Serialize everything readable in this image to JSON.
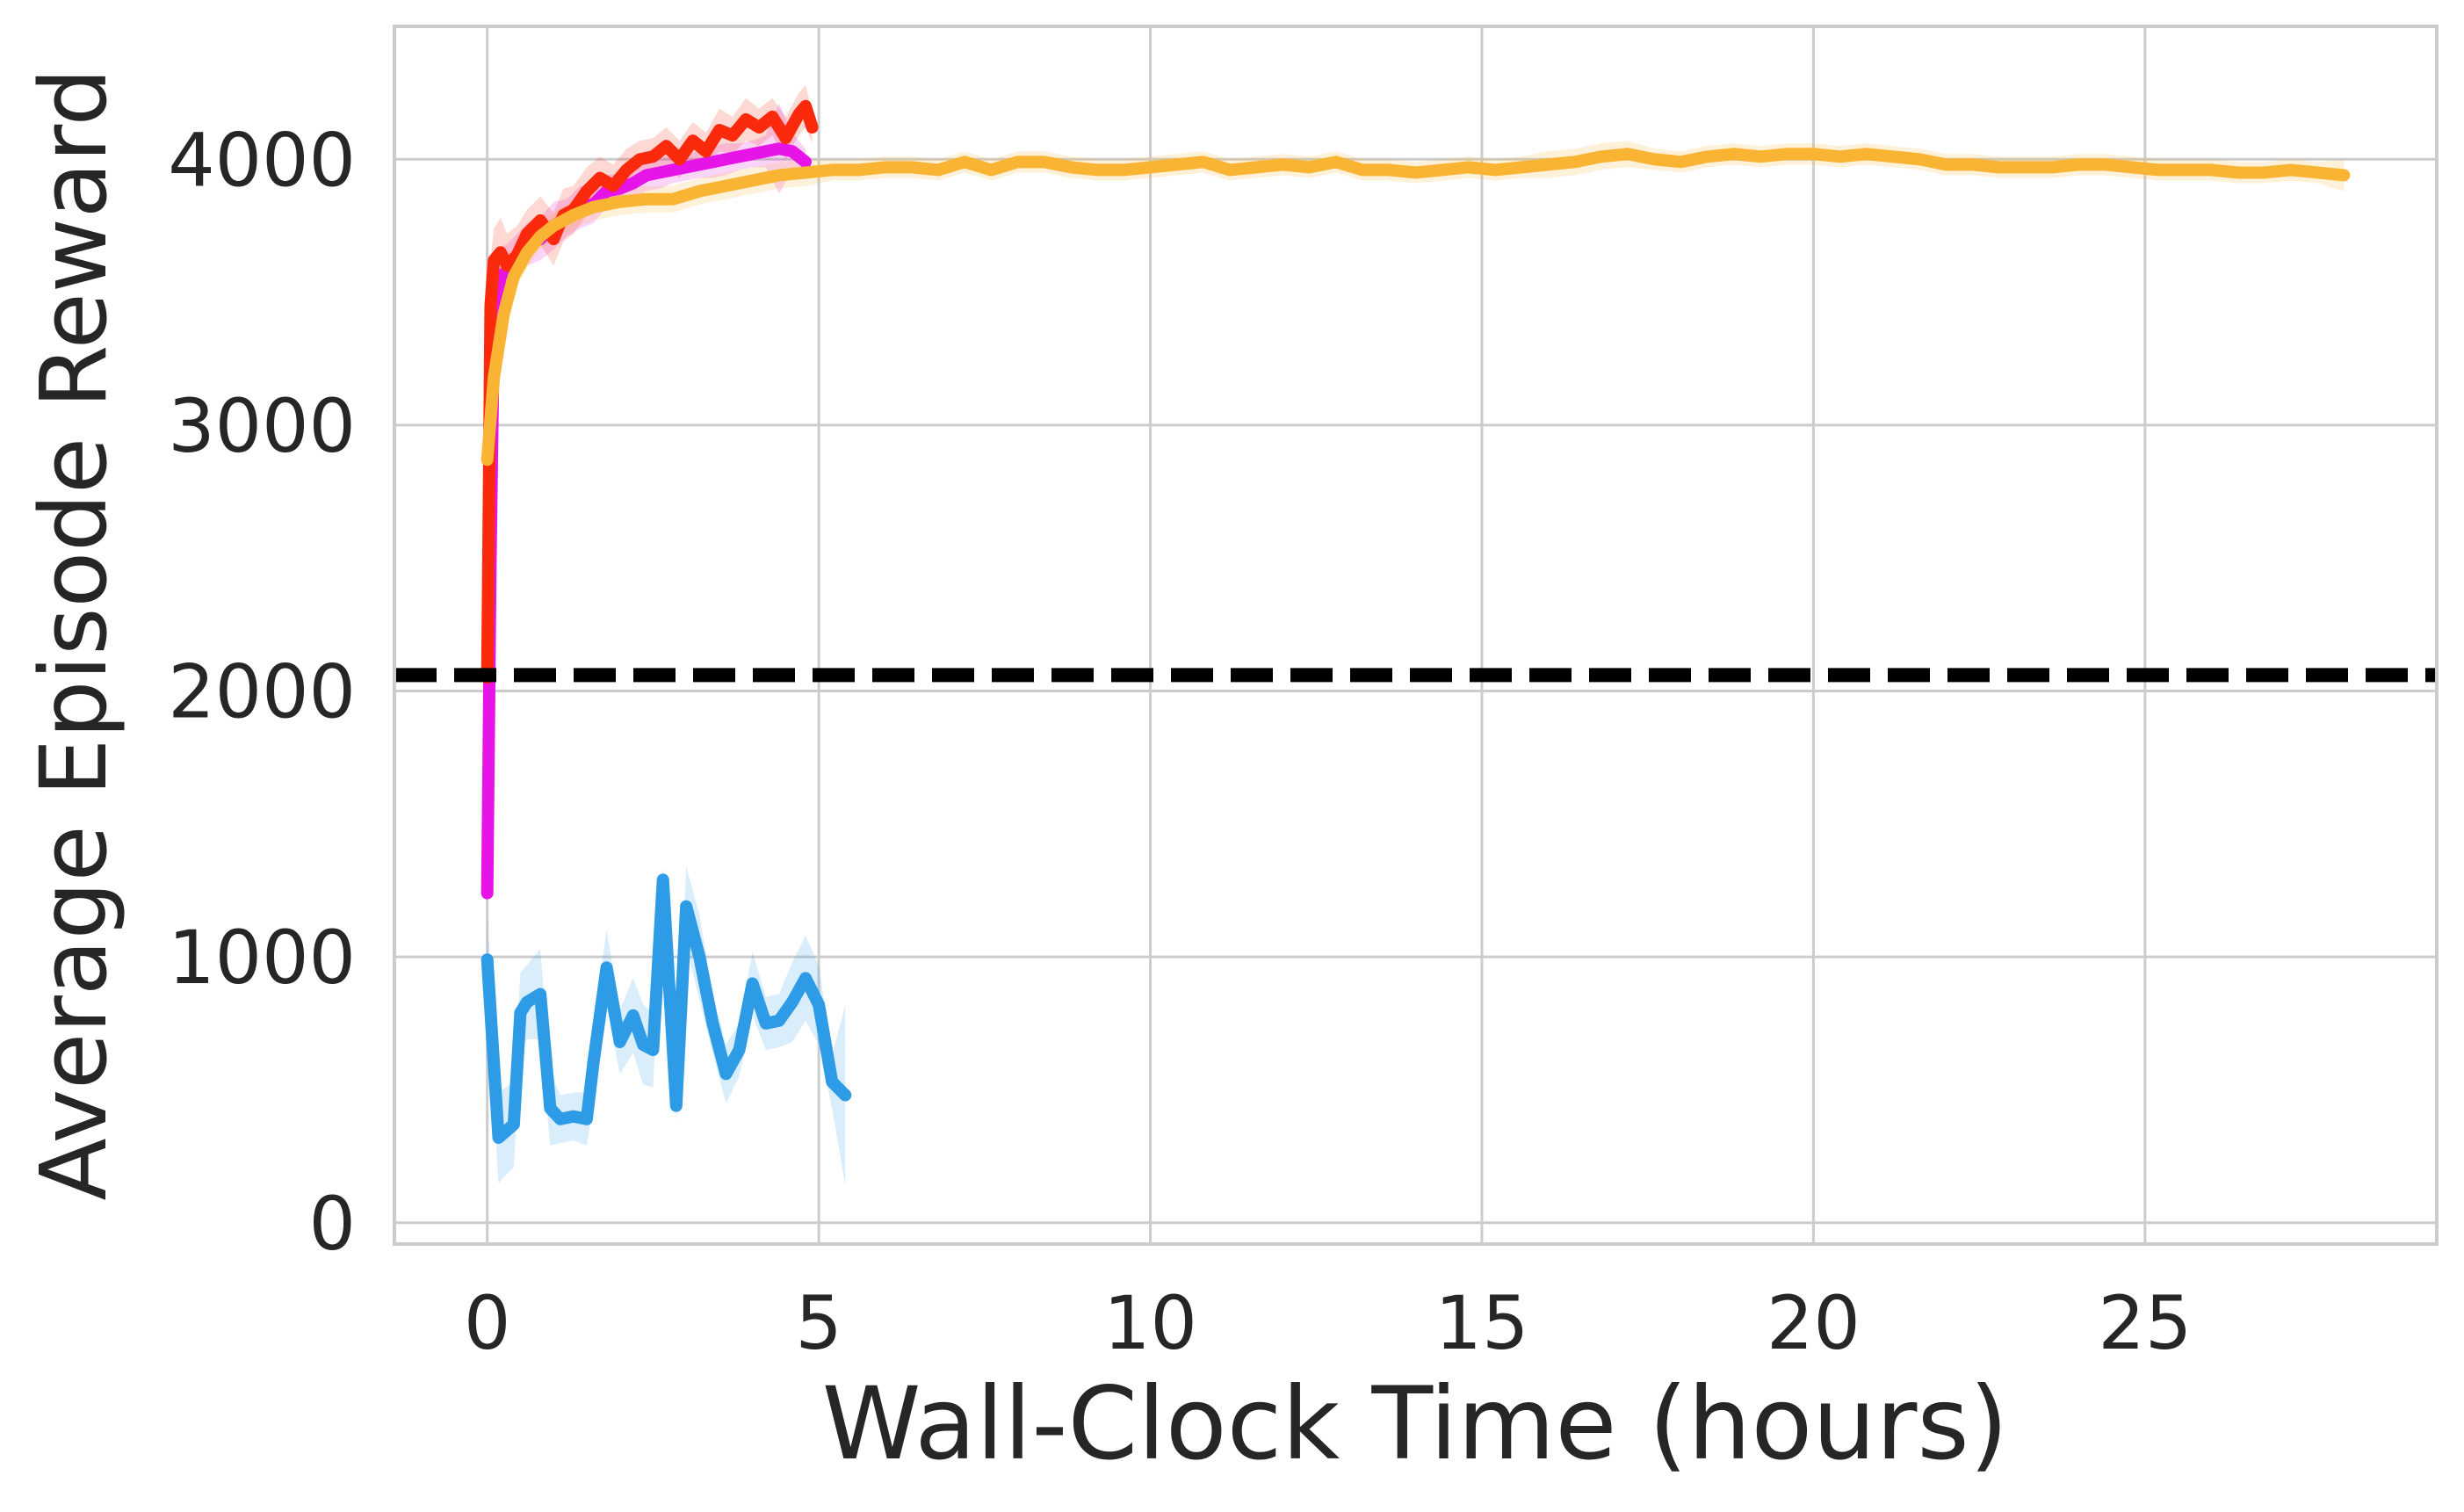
{
  "chart_data": {
    "type": "line",
    "title": "",
    "xlabel": "Wall-Clock Time (hours)",
    "ylabel": "Average Episode Reward",
    "xlim": [
      -1.4,
      29.4
    ],
    "ylim": [
      -80,
      4500
    ],
    "xticks": [
      0,
      5,
      10,
      15,
      20,
      25
    ],
    "yticks": [
      0,
      1000,
      2000,
      3000,
      4000
    ],
    "grid": true,
    "legend": false,
    "reference_line": {
      "y": 2060,
      "color": "#000000",
      "style": "dashed"
    },
    "series": [
      {
        "color": "#2e9be6",
        "x": [
          0.0,
          0.17,
          0.4,
          0.5,
          0.6,
          0.8,
          0.95,
          1.1,
          1.3,
          1.5,
          1.6,
          1.8,
          2.0,
          2.2,
          2.35,
          2.5,
          2.65,
          2.85,
          3.0,
          3.2,
          3.4,
          3.6,
          3.8,
          4.0,
          4.2,
          4.4,
          4.6,
          4.8,
          5.0,
          5.2,
          5.4
        ],
        "y": [
          990,
          320,
          370,
          790,
          830,
          860,
          430,
          390,
          400,
          390,
          600,
          960,
          680,
          780,
          670,
          650,
          1290,
          440,
          1190,
          1000,
          750,
          560,
          650,
          900,
          750,
          760,
          830,
          920,
          820,
          530,
          480
        ],
        "band": [
          150,
          170,
          160,
          150,
          140,
          170,
          140,
          90,
          90,
          100,
          150,
          140,
          120,
          140,
          150,
          140,
          50,
          60,
          150,
          160,
          110,
          110,
          100,
          120,
          100,
          100,
          150,
          160,
          150,
          100,
          340
        ]
      },
      {
        "color": "#e614e6",
        "x": [
          0.0,
          0.05,
          0.1,
          0.2,
          0.3,
          0.45,
          0.6,
          0.8,
          1.0,
          1.2,
          1.4,
          1.6,
          1.8,
          2.0,
          2.2,
          2.4,
          2.6,
          2.8,
          3.0,
          3.2,
          3.4,
          3.6,
          3.8,
          4.0,
          4.2,
          4.4,
          4.6,
          4.8
        ],
        "y": [
          1240,
          2500,
          3400,
          3560,
          3580,
          3630,
          3680,
          3700,
          3750,
          3780,
          3820,
          3830,
          3880,
          3890,
          3910,
          3940,
          3950,
          3960,
          3970,
          3980,
          3990,
          4000,
          4010,
          4020,
          4030,
          4040,
          4030,
          3990
        ],
        "band": [
          0,
          150,
          140,
          110,
          100,
          90,
          80,
          80,
          90,
          70,
          80,
          70,
          60,
          60,
          60,
          60,
          60,
          50,
          50,
          50,
          60,
          60,
          50,
          50,
          60,
          170,
          70,
          50
        ]
      },
      {
        "color": "#fc2a0c",
        "x": [
          0.0,
          0.02,
          0.05,
          0.1,
          0.2,
          0.3,
          0.45,
          0.6,
          0.8,
          1.0,
          1.15,
          1.3,
          1.5,
          1.7,
          1.9,
          2.1,
          2.3,
          2.5,
          2.7,
          2.9,
          3.1,
          3.3,
          3.5,
          3.7,
          3.9,
          4.1,
          4.3,
          4.5,
          4.7,
          4.8,
          4.9
        ],
        "y": [
          2050,
          2600,
          3450,
          3620,
          3650,
          3600,
          3640,
          3720,
          3770,
          3700,
          3790,
          3810,
          3880,
          3930,
          3900,
          3960,
          4000,
          4010,
          4050,
          4000,
          4070,
          4030,
          4110,
          4090,
          4150,
          4120,
          4160,
          4080,
          4170,
          4200,
          4120
        ],
        "band": [
          0,
          150,
          170,
          120,
          130,
          120,
          110,
          90,
          90,
          100,
          100,
          90,
          90,
          80,
          80,
          80,
          70,
          70,
          70,
          70,
          70,
          70,
          80,
          70,
          80,
          70,
          70,
          80,
          80,
          80,
          60
        ]
      },
      {
        "color": "#f8b432",
        "x": [
          0.0,
          0.1,
          0.25,
          0.4,
          0.6,
          0.8,
          1.0,
          1.3,
          1.6,
          2.0,
          2.4,
          2.8,
          3.2,
          3.6,
          4.0,
          4.4,
          4.8,
          5.2,
          5.6,
          6.0,
          6.4,
          6.8,
          7.2,
          7.6,
          8.0,
          8.4,
          8.8,
          9.2,
          9.6,
          10.0,
          10.4,
          10.8,
          11.2,
          11.6,
          12.0,
          12.4,
          12.8,
          13.2,
          13.6,
          14.0,
          14.4,
          14.8,
          15.2,
          15.6,
          16.0,
          16.4,
          16.8,
          17.2,
          17.6,
          18.0,
          18.4,
          18.8,
          19.2,
          19.6,
          20.0,
          20.4,
          20.8,
          21.2,
          21.6,
          22.0,
          22.4,
          22.8,
          23.2,
          23.6,
          24.0,
          24.4,
          24.8,
          25.2,
          25.6,
          26.0,
          26.4,
          26.8,
          27.2,
          27.6,
          28.0
        ],
        "y": [
          2870,
          3180,
          3420,
          3560,
          3650,
          3710,
          3750,
          3790,
          3820,
          3840,
          3850,
          3850,
          3880,
          3900,
          3920,
          3940,
          3950,
          3960,
          3960,
          3970,
          3970,
          3960,
          3990,
          3960,
          3990,
          3990,
          3970,
          3960,
          3960,
          3970,
          3980,
          3990,
          3960,
          3970,
          3980,
          3970,
          3990,
          3960,
          3960,
          3950,
          3960,
          3970,
          3960,
          3970,
          3980,
          3990,
          4010,
          4020,
          4000,
          3990,
          4010,
          4020,
          4010,
          4020,
          4020,
          4010,
          4020,
          4010,
          4000,
          3980,
          3980,
          3970,
          3970,
          3970,
          3980,
          3980,
          3970,
          3960,
          3960,
          3960,
          3950,
          3950,
          3960,
          3950,
          3940
        ],
        "band": [
          0,
          80,
          70,
          60,
          60,
          50,
          50,
          50,
          50,
          50,
          50,
          50,
          50,
          50,
          50,
          50,
          50,
          40,
          40,
          40,
          40,
          40,
          40,
          40,
          40,
          40,
          40,
          40,
          40,
          40,
          40,
          40,
          40,
          40,
          40,
          40,
          40,
          40,
          40,
          40,
          40,
          40,
          40,
          40,
          50,
          50,
          50,
          50,
          40,
          40,
          40,
          40,
          40,
          40,
          40,
          40,
          40,
          40,
          40,
          40,
          40,
          40,
          40,
          40,
          40,
          40,
          40,
          40,
          40,
          40,
          40,
          40,
          40,
          40,
          60
        ]
      }
    ]
  }
}
